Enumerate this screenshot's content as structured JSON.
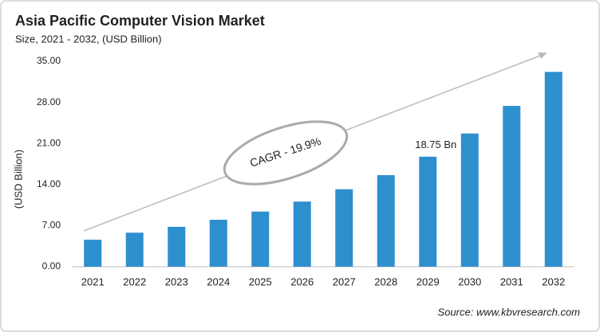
{
  "chart_data": {
    "type": "bar",
    "title": "Asia Pacific Computer Vision Market",
    "subtitle": "Size, 2021 - 2032, (USD Billion)",
    "y_label": "(USD Billion)",
    "categories": [
      "2021",
      "2022",
      "2023",
      "2024",
      "2025",
      "2026",
      "2027",
      "2028",
      "2029",
      "2030",
      "2031",
      "2032"
    ],
    "values": [
      4.6,
      5.8,
      6.8,
      8.0,
      9.4,
      11.1,
      13.2,
      15.6,
      18.75,
      22.7,
      27.4,
      33.2
    ],
    "value_labels": [
      null,
      null,
      null,
      null,
      null,
      null,
      null,
      null,
      "18.75 Bn",
      null,
      null,
      null
    ],
    "color": "#2e8fcf",
    "ylim": [
      0,
      35
    ],
    "yticks": [
      {
        "value": 0,
        "label": "0.00"
      },
      {
        "value": 7,
        "label": "7.00"
      },
      {
        "value": 14,
        "label": "14.00"
      },
      {
        "value": 21,
        "label": "21.00"
      },
      {
        "value": 28,
        "label": "28.00"
      },
      {
        "value": 35,
        "label": "35.00"
      }
    ],
    "annotation": "CAGR - 19.9%",
    "source": "Source: www.kbvresearch.com",
    "grid": false
  }
}
